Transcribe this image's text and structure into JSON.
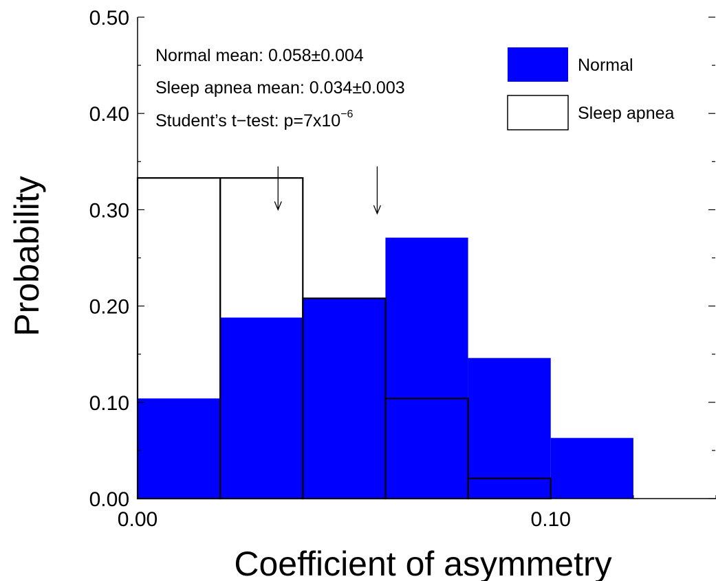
{
  "chart_data": {
    "type": "bar",
    "xlabel": "Coefficient of asymmetry",
    "ylabel": "Probability",
    "xlim": [
      0.0,
      0.14
    ],
    "ylim": [
      0.0,
      0.5
    ],
    "bin_width": 0.02,
    "bins": [
      0.0,
      0.02,
      0.04,
      0.06,
      0.08,
      0.1
    ],
    "x_ticks": [
      {
        "value": 0.0,
        "label": "0.00"
      },
      {
        "value": 0.1,
        "label": "0.10"
      }
    ],
    "y_ticks": [
      {
        "value": 0.0,
        "label": "0.00"
      },
      {
        "value": 0.1,
        "label": "0.10"
      },
      {
        "value": 0.2,
        "label": "0.20"
      },
      {
        "value": 0.3,
        "label": "0.30"
      },
      {
        "value": 0.4,
        "label": "0.40"
      },
      {
        "value": 0.5,
        "label": "0.50"
      }
    ],
    "series": [
      {
        "name": "Normal",
        "style": "filled",
        "color": "#0000ff",
        "values": [
          0.104,
          0.188,
          0.208,
          0.271,
          0.146,
          0.063
        ]
      },
      {
        "name": "Sleep apnea",
        "style": "outline",
        "color": "#000000",
        "values": [
          0.333,
          0.333,
          0.208,
          0.104,
          0.021,
          0.0
        ]
      }
    ],
    "annotations": [
      {
        "text": "Normal mean: 0.058±0.004"
      },
      {
        "text": "Sleep apnea mean: 0.034±0.003"
      },
      {
        "text": "Student’s t−test: p=7x10",
        "superscript": "−6"
      }
    ],
    "arrows": [
      {
        "x": 0.034,
        "y_from": 0.345,
        "y_to": 0.3
      },
      {
        "x": 0.058,
        "y_from": 0.345,
        "y_to": 0.296
      }
    ],
    "legend": {
      "placement": "top-right"
    }
  }
}
